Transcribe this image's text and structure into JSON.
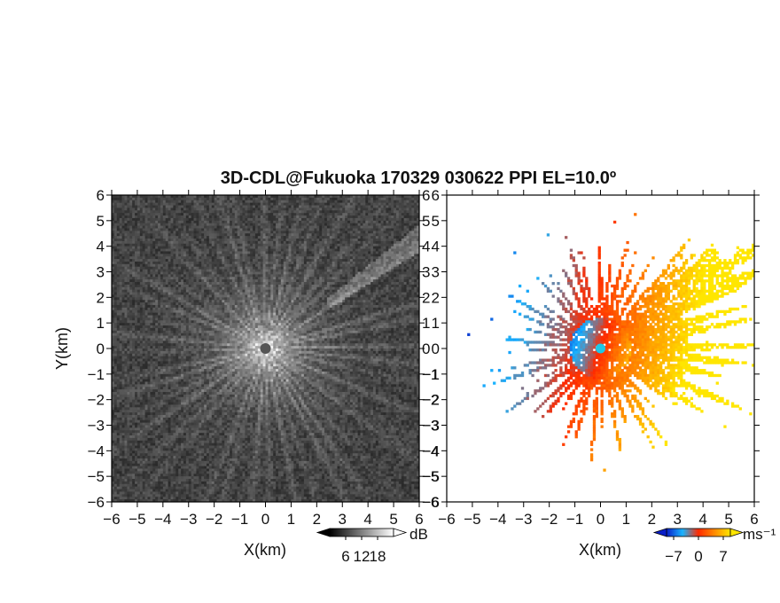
{
  "chart_data": {
    "title": "3D-CDL@Fukuoka 170329 030622 PPI EL=10.0º",
    "panels": [
      {
        "type": "heatmap",
        "quantity": "SNR",
        "colormap": "grayscale",
        "xlabel": "X(km)",
        "ylabel": "Y(km)",
        "xlim": [
          -6,
          6
        ],
        "ylim": [
          -6,
          6
        ],
        "x_ticks": [
          "−6",
          "−5",
          "−4",
          "−3",
          "−2",
          "−1",
          "0",
          "1",
          "2",
          "3",
          "4",
          "5",
          "6"
        ],
        "y_ticks": [
          "6",
          "5",
          "4",
          "3",
          "2",
          "1",
          "0",
          "−1",
          "−2",
          "−3",
          "−4",
          "−5",
          "−6"
        ],
        "colorbar": {
          "unit": "dB",
          "ticks": [
            "6",
            "12",
            "18"
          ],
          "tick_values": [
            6,
            12,
            18
          ],
          "range": [
            0,
            24
          ],
          "colors": [
            "#000000",
            "#ffffff"
          ]
        }
      },
      {
        "type": "heatmap",
        "quantity": "Doppler velocity",
        "colormap": "blue-cyan-red-yellow",
        "xlabel": "X(km)",
        "ylabel": "",
        "xlim": [
          -6,
          6
        ],
        "ylim": [
          -6,
          6
        ],
        "x_ticks": [
          "−6",
          "−5",
          "−4",
          "−3",
          "−2",
          "−1",
          "0",
          "1",
          "2",
          "3",
          "4",
          "5",
          "6"
        ],
        "y_ticks": [
          "6",
          "5",
          "4",
          "3",
          "2",
          "1",
          "0",
          "−1",
          "−2",
          "−3",
          "−4",
          "−5",
          "−6"
        ],
        "colorbar": {
          "unit": "ms⁻¹",
          "ticks": [
            "−7",
            "0",
            "7"
          ],
          "tick_values": [
            -7,
            0,
            7
          ],
          "range": [
            -9,
            9
          ],
          "colors": [
            "#0a1ec8",
            "#19b4ff",
            "#ff2a00",
            "#ff8a00",
            "#ffe600"
          ]
        }
      }
    ]
  }
}
